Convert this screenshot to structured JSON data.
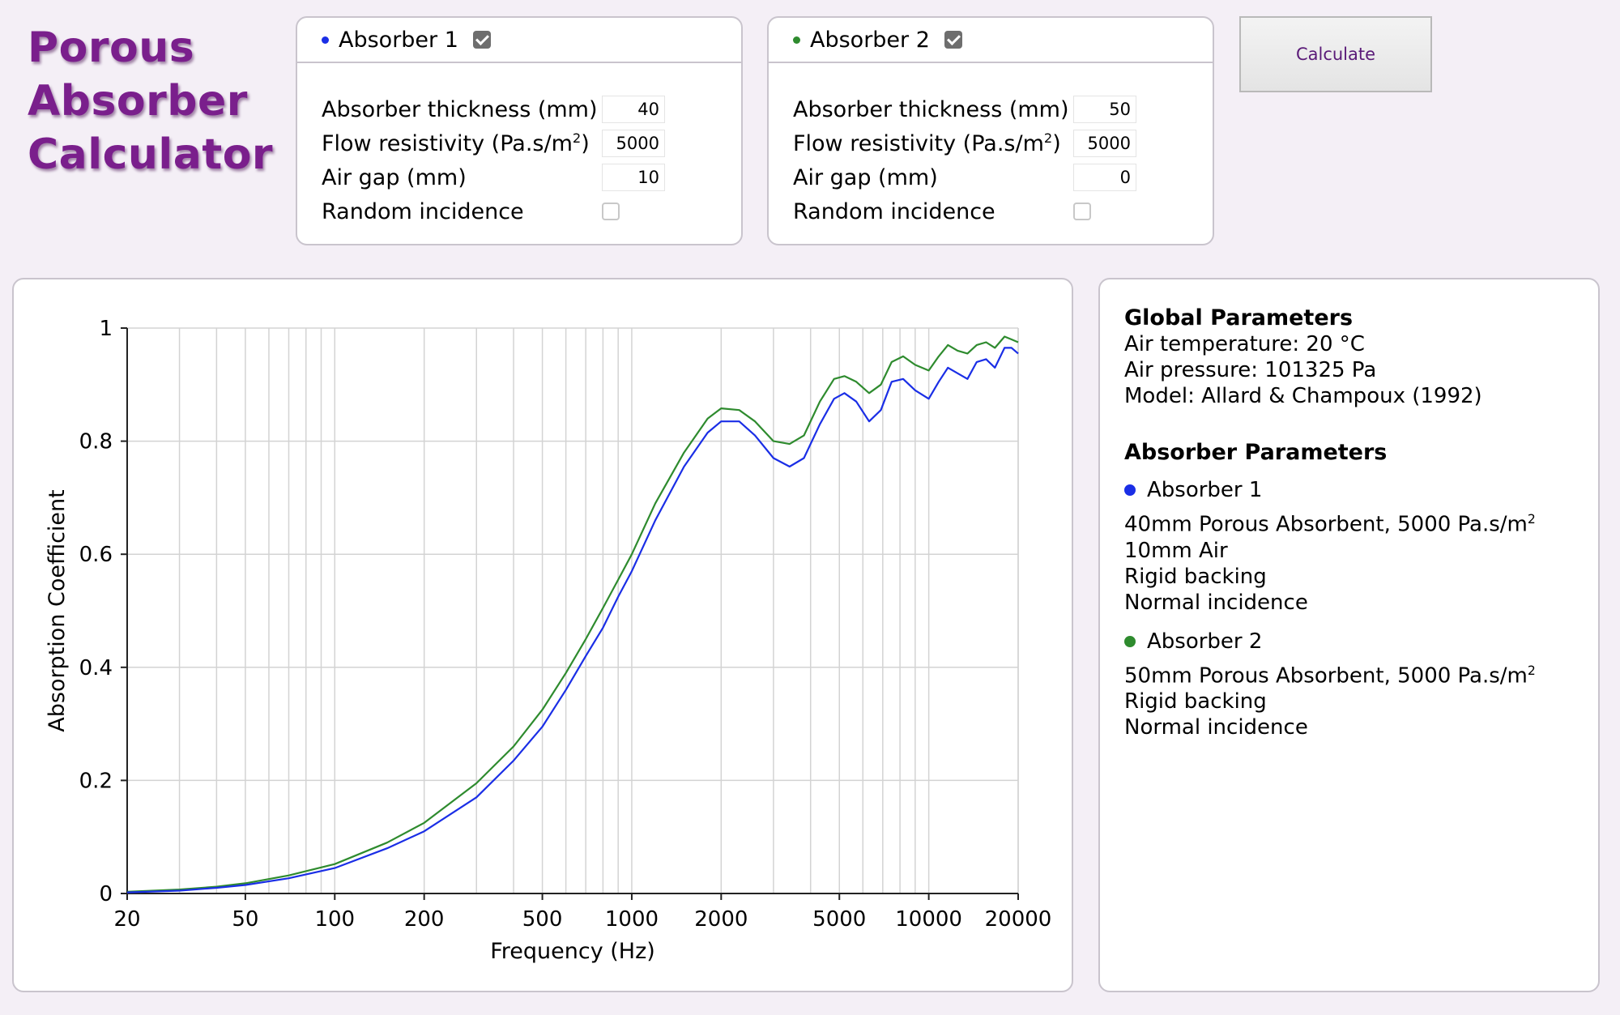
{
  "app": {
    "title_line1": "Porous",
    "title_line2": "Absorber",
    "title_line3": "Calculator"
  },
  "colors": {
    "absorber1": "#1a2ee6",
    "absorber2": "#2e8b2e",
    "title": "#7a1f8c"
  },
  "absorber1": {
    "name": "Absorber 1",
    "enabled": true,
    "thickness_label": "Absorber thickness (mm)",
    "thickness": "40",
    "flow_label_pre": "Flow resistivity (Pa.s/m",
    "flow_label_sup": "2",
    "flow_label_post": ")",
    "flow": "5000",
    "airgap_label": "Air gap (mm)",
    "airgap": "10",
    "random_label": "Random incidence",
    "random": false
  },
  "absorber2": {
    "name": "Absorber 2",
    "enabled": true,
    "thickness_label": "Absorber thickness (mm)",
    "thickness": "50",
    "flow_label_pre": "Flow resistivity (Pa.s/m",
    "flow_label_sup": "2",
    "flow_label_post": ")",
    "flow": "5000",
    "airgap_label": "Air gap (mm)",
    "airgap": "0",
    "random_label": "Random incidence",
    "random": false
  },
  "calculate_label": "Calculate",
  "info": {
    "global_heading": "Global Parameters",
    "air_temperature": "Air temperature: 20 °C",
    "air_pressure": "Air pressure: 101325 Pa",
    "model": "Model: Allard & Champoux (1992)",
    "absorber_heading": "Absorber Parameters",
    "a1_name": "Absorber 1",
    "a1_line1_pre": "40mm Porous Absorbent, 5000 Pa.s/m",
    "a1_line1_sup": "2",
    "a1_line2": "10mm Air",
    "a1_line3": "Rigid backing",
    "a1_line4": "Normal incidence",
    "a2_name": "Absorber 2",
    "a2_line1_pre": "50mm Porous Absorbent, 5000 Pa.s/m",
    "a2_line1_sup": "2",
    "a2_line2": "Rigid backing",
    "a2_line3": "Normal incidence"
  },
  "chart_data": {
    "type": "line",
    "title": "",
    "xlabel": "Frequency (Hz)",
    "ylabel": "Absorption Coefficient",
    "xscale": "log",
    "xlim": [
      20,
      20000
    ],
    "ylim": [
      0,
      1
    ],
    "x_ticks": [
      "20",
      "50",
      "100",
      "200",
      "500",
      "1000",
      "2000",
      "5000",
      "10000",
      "20000"
    ],
    "y_ticks": [
      "0",
      "0.2",
      "0.4",
      "0.6",
      "0.8",
      "1"
    ],
    "grid": true,
    "series": [
      {
        "name": "Absorber 1",
        "color": "#1a2ee6",
        "x": [
          20,
          30,
          40,
          50,
          70,
          100,
          150,
          200,
          300,
          400,
          500,
          600,
          700,
          800,
          900,
          1000,
          1200,
          1500,
          1800,
          2000,
          2300,
          2600,
          3000,
          3400,
          3800,
          4300,
          4800,
          5200,
          5700,
          6300,
          6900,
          7500,
          8200,
          9000,
          10000,
          10800,
          11600,
          12500,
          13500,
          14500,
          15600,
          16700,
          18000,
          19000,
          20000
        ],
        "y": [
          0.002,
          0.005,
          0.01,
          0.015,
          0.027,
          0.045,
          0.08,
          0.11,
          0.17,
          0.235,
          0.295,
          0.36,
          0.42,
          0.47,
          0.525,
          0.57,
          0.66,
          0.755,
          0.815,
          0.835,
          0.835,
          0.81,
          0.77,
          0.755,
          0.77,
          0.83,
          0.875,
          0.885,
          0.87,
          0.835,
          0.855,
          0.905,
          0.91,
          0.89,
          0.875,
          0.905,
          0.93,
          0.92,
          0.91,
          0.94,
          0.945,
          0.93,
          0.965,
          0.965,
          0.955
        ]
      },
      {
        "name": "Absorber 2",
        "color": "#2e8b2e",
        "x": [
          20,
          30,
          40,
          50,
          70,
          100,
          150,
          200,
          300,
          400,
          500,
          600,
          700,
          800,
          900,
          1000,
          1200,
          1500,
          1800,
          2000,
          2300,
          2600,
          3000,
          3400,
          3800,
          4300,
          4800,
          5200,
          5700,
          6300,
          6900,
          7500,
          8200,
          9000,
          10000,
          10800,
          11600,
          12500,
          13500,
          14500,
          15600,
          16700,
          18000,
          19000,
          20000
        ],
        "y": [
          0.003,
          0.007,
          0.012,
          0.018,
          0.032,
          0.052,
          0.09,
          0.125,
          0.195,
          0.26,
          0.325,
          0.39,
          0.45,
          0.505,
          0.555,
          0.6,
          0.69,
          0.78,
          0.84,
          0.858,
          0.855,
          0.835,
          0.8,
          0.795,
          0.81,
          0.87,
          0.91,
          0.915,
          0.905,
          0.885,
          0.9,
          0.94,
          0.95,
          0.935,
          0.925,
          0.95,
          0.97,
          0.96,
          0.955,
          0.97,
          0.975,
          0.965,
          0.985,
          0.98,
          0.975
        ]
      }
    ]
  }
}
